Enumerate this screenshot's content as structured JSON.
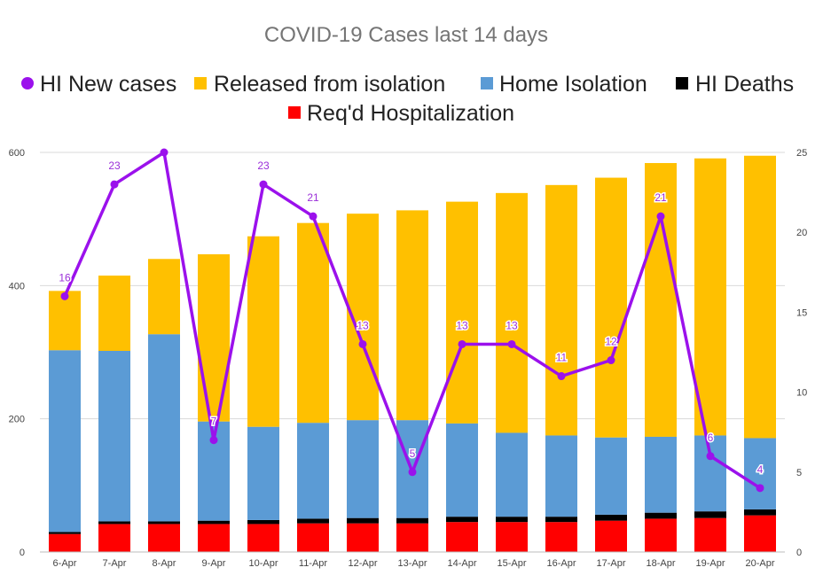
{
  "chart_data": {
    "type": "bar",
    "stacked": true,
    "title": "COVID-19 Cases last 14 days",
    "legend_position": "top",
    "grid": true,
    "categories": [
      "6-Apr",
      "7-Apr",
      "8-Apr",
      "9-Apr",
      "10-Apr",
      "11-Apr",
      "12-Apr",
      "13-Apr",
      "14-Apr",
      "15-Apr",
      "16-Apr",
      "17-Apr",
      "18-Apr",
      "19-Apr",
      "20-Apr"
    ],
    "y_left": {
      "ylim": [
        0,
        600
      ],
      "ticks": [
        0,
        200,
        400,
        600
      ]
    },
    "y_right": {
      "ylim": [
        0,
        25
      ],
      "ticks": [
        0,
        5,
        10,
        15,
        20,
        25
      ]
    },
    "series": [
      {
        "name": "Req'd Hospitalization",
        "kind": "bar",
        "color": "#ff0000",
        "values": [
          27,
          42,
          42,
          42,
          42,
          43,
          43,
          43,
          45,
          45,
          45,
          47,
          50,
          51,
          55
        ]
      },
      {
        "name": "HI Deaths",
        "kind": "bar",
        "color": "#000000",
        "values": [
          3,
          4,
          4,
          5,
          6,
          7,
          8,
          8,
          8,
          8,
          8,
          9,
          9,
          10,
          9
        ]
      },
      {
        "name": "Home Isolation",
        "kind": "bar",
        "color": "#5b9bd5",
        "values": [
          273,
          256,
          281,
          149,
          140,
          144,
          147,
          147,
          140,
          126,
          122,
          116,
          114,
          114,
          107
        ]
      },
      {
        "name": "Released from isolation",
        "kind": "bar",
        "color": "#ffc000",
        "values": [
          89,
          113,
          113,
          251,
          286,
          300,
          310,
          315,
          333,
          360,
          376,
          390,
          411,
          416,
          424
        ]
      },
      {
        "name": "HI New cases",
        "kind": "line",
        "axis": "right",
        "color": "#9b11ec",
        "values": [
          16,
          23,
          25,
          7,
          23,
          21,
          13,
          5,
          13,
          13,
          11,
          12,
          21,
          6,
          4
        ],
        "data_labels": [
          "16",
          "23",
          "",
          "7",
          "23",
          "21",
          "13",
          "5",
          "13",
          "13",
          "11",
          "12",
          "21",
          "6",
          "4"
        ]
      }
    ],
    "legend": {
      "row1": [
        "HI New cases",
        "Released from isolation",
        "Home Isolation",
        "HI Deaths"
      ],
      "row2": [
        "Req'd Hospitalization"
      ]
    }
  }
}
